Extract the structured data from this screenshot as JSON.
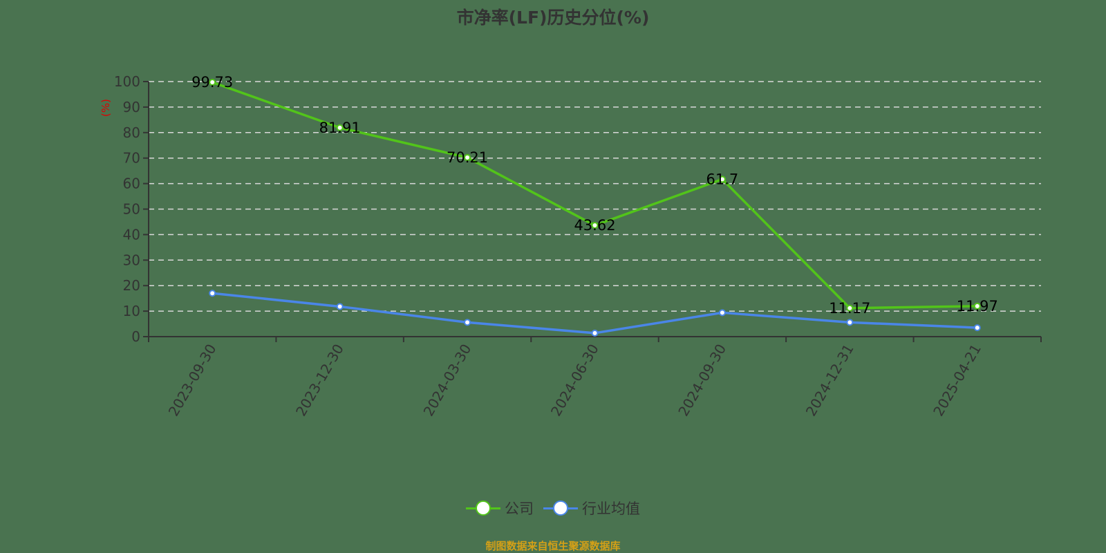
{
  "title": "市净率(LF)历史分位(%)",
  "ylabel": "(%)",
  "source": "制图数据来自恒生聚源数据库",
  "legend": [
    {
      "label": "公司",
      "color": "#52c41a"
    },
    {
      "label": "行业均值",
      "color": "#4a86e8"
    }
  ],
  "chart_data": {
    "type": "line",
    "title": "市净率(LF)历史分位(%)",
    "xlabel": "",
    "ylabel": "(%)",
    "ylim": [
      0,
      100
    ],
    "yticks": [
      0,
      10,
      20,
      30,
      40,
      50,
      60,
      70,
      80,
      90,
      100
    ],
    "grid": true,
    "legend_position": "bottom",
    "categories": [
      "2023-09-30",
      "2023-12-30",
      "2024-03-30",
      "2024-06-30",
      "2024-09-30",
      "2024-12-31",
      "2025-04-21"
    ],
    "series": [
      {
        "name": "公司",
        "color": "#52c41a",
        "values": [
          99.73,
          81.91,
          70.21,
          43.62,
          61.7,
          11.17,
          11.97
        ],
        "labels_shown": true
      },
      {
        "name": "行业均值",
        "color": "#4a86e8",
        "values": [
          17.0,
          11.8,
          5.6,
          1.4,
          9.4,
          5.6,
          3.5
        ],
        "labels_shown": false
      }
    ]
  }
}
